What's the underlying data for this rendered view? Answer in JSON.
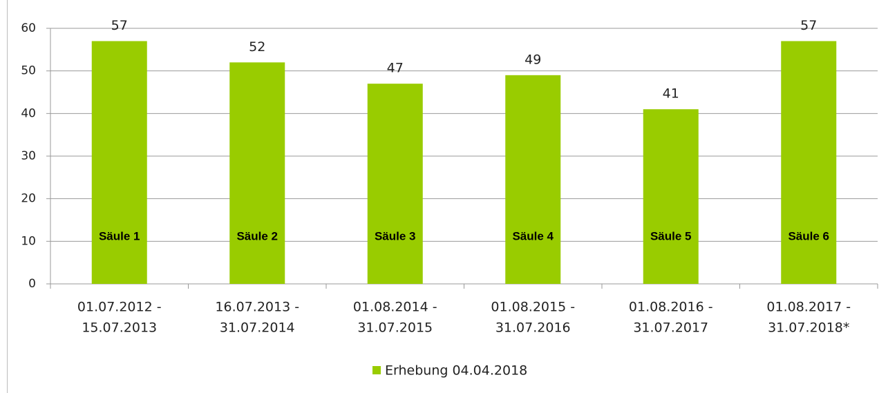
{
  "chart_data": {
    "type": "bar",
    "categories": [
      [
        "01.07.2012 -",
        "15.07.2013"
      ],
      [
        "16.07.2013 -",
        "31.07.2014"
      ],
      [
        "01.08.2014 -",
        "31.07.2015"
      ],
      [
        "01.08.2015 -",
        "31.07.2016"
      ],
      [
        "01.08.2016 -",
        "31.07.2017"
      ],
      [
        "01.08.2017 -",
        "31.07.2018*"
      ]
    ],
    "series": [
      {
        "name": "Erhebung 04.04.2018",
        "color": "#99cc00",
        "values": [
          57,
          52,
          47,
          49,
          41,
          57
        ]
      }
    ],
    "annotations": [
      "Säule 1",
      "Säule 2",
      "Säule 3",
      "Säule 4",
      "Säule 5",
      "Säule 6"
    ],
    "ylim": [
      0,
      60
    ],
    "yticks": [
      0,
      10,
      20,
      30,
      40,
      50,
      60
    ],
    "grid": true,
    "legend": "bottom"
  }
}
